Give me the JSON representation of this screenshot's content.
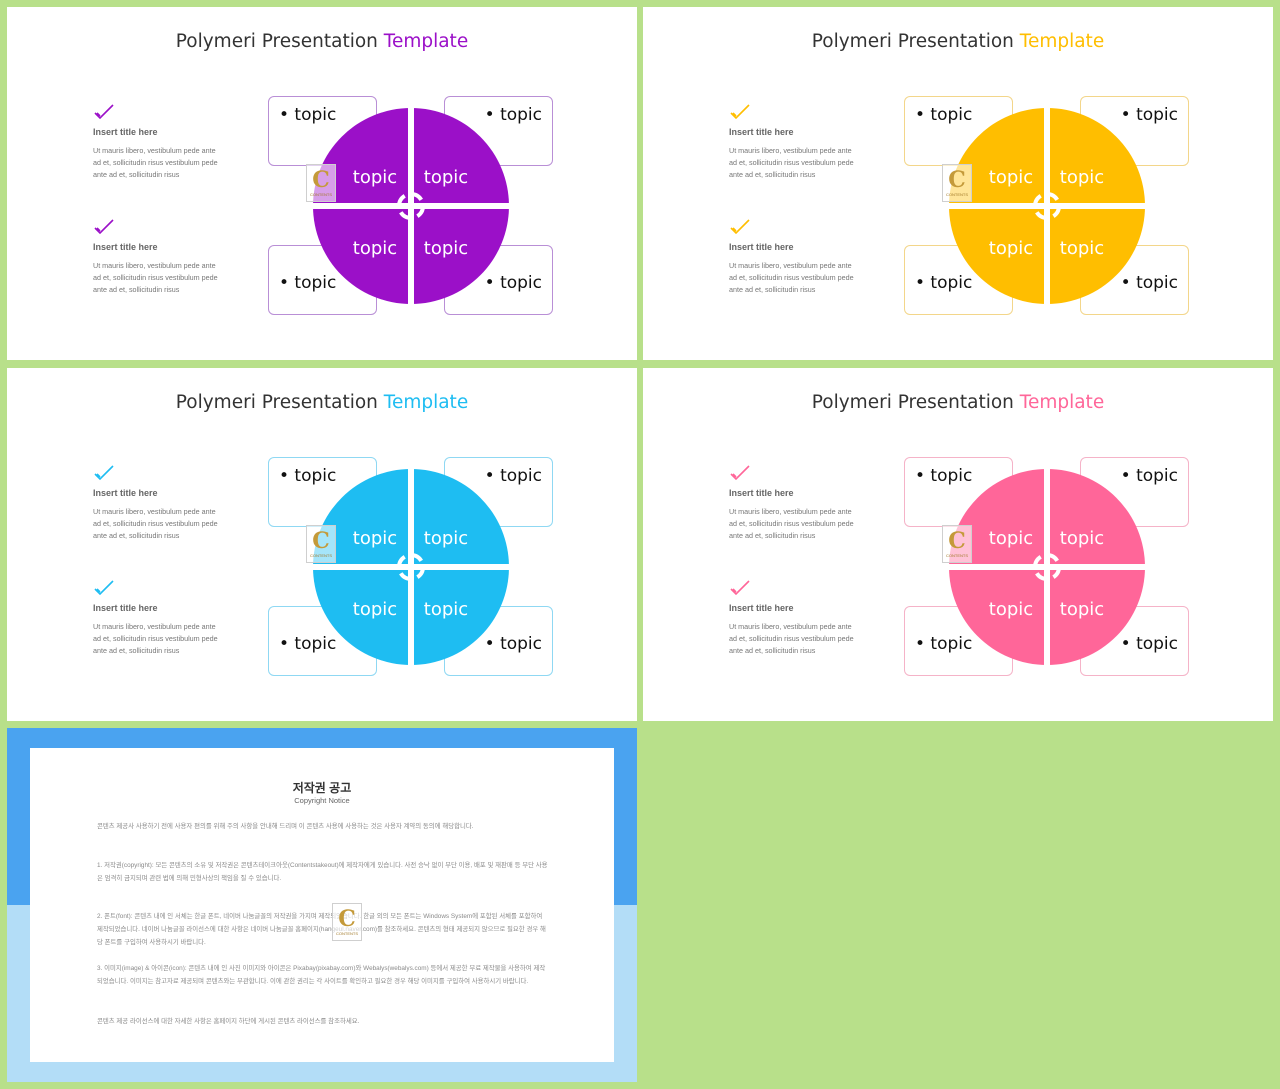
{
  "slides": [
    {
      "title_main": "Polymeri Presentation ",
      "title_accent": "Template",
      "accent": "#9b10c8",
      "border": "#b98fd6",
      "items": [
        {
          "icon": "check-icon",
          "title": "Insert title here",
          "body": "Ut mauris libero, vestibulum pede ante ad et, sollicitudin risus vestibulum pede ante ad et, sollicitudin risus"
        },
        {
          "icon": "check-icon",
          "title": "Insert title here",
          "body": "Ut mauris libero, vestibulum pede ante ad et, sollicitudin risus vestibulum pede ante ad et, sollicitudin risus"
        }
      ],
      "boxes": [
        "• topic",
        "• topic",
        "• topic",
        "• topic"
      ],
      "quadrants": [
        "topic",
        "topic",
        "topic",
        "topic"
      ]
    },
    {
      "title_main": "Polymeri Presentation ",
      "title_accent": "Template",
      "accent": "#ffbe00",
      "border": "#f3d68a",
      "items": [
        {
          "icon": "check-icon",
          "title": "Insert title here",
          "body": "Ut mauris libero, vestibulum pede ante ad et, sollicitudin risus vestibulum pede ante ad et, sollicitudin risus"
        },
        {
          "icon": "check-icon",
          "title": "Insert title here",
          "body": "Ut mauris libero, vestibulum pede ante ad et, sollicitudin risus vestibulum pede ante ad et, sollicitudin risus"
        }
      ],
      "boxes": [
        "• topic",
        "• topic",
        "• topic",
        "• topic"
      ],
      "quadrants": [
        "topic",
        "topic",
        "topic",
        "topic"
      ]
    },
    {
      "title_main": "Polymeri Presentation ",
      "title_accent": "Template",
      "accent": "#1ebdf2",
      "border": "#8fd8f3",
      "items": [
        {
          "icon": "check-icon",
          "title": "Insert title here",
          "body": "Ut mauris libero, vestibulum pede ante ad et, sollicitudin risus vestibulum pede ante ad et, sollicitudin risus"
        },
        {
          "icon": "check-icon",
          "title": "Insert title here",
          "body": "Ut mauris libero, vestibulum pede ante ad et, sollicitudin risus vestibulum pede ante ad et, sollicitudin risus"
        }
      ],
      "boxes": [
        "• topic",
        "• topic",
        "• topic",
        "• topic"
      ],
      "quadrants": [
        "topic",
        "topic",
        "topic",
        "topic"
      ]
    },
    {
      "title_main": "Polymeri Presentation ",
      "title_accent": "Template",
      "accent": "#ff6699",
      "border": "#f5b3c8",
      "items": [
        {
          "icon": "check-icon",
          "title": "Insert title here",
          "body": "Ut mauris libero, vestibulum pede ante ad et, sollicitudin risus vestibulum pede ante ad et, sollicitudin risus"
        },
        {
          "icon": "check-icon",
          "title": "Insert title here",
          "body": "Ut mauris libero, vestibulum pede ante ad et, sollicitudin risus vestibulum pede ante ad et, sollicitudin risus"
        }
      ],
      "boxes": [
        "• topic",
        "• topic",
        "• topic",
        "• topic"
      ],
      "quadrants": [
        "topic",
        "topic",
        "topic",
        "topic"
      ]
    }
  ],
  "watermark": {
    "letter": "C",
    "text": "CONTENTS"
  },
  "copyright": {
    "title": "저작권 공고",
    "subtitle": "Copyright Notice",
    "paragraphs": [
      "콘텐츠 제공사 사용하기 전에 사용자 편의를 위해 주의 사항을 안내해 드리며 이 콘텐츠 사용에 사용하는 것은 사용자 계약의 동의에 해당합니다.",
      "1. 저작권(copyright): 모든 콘텐츠의 소유 및 저작권은 콘텐츠테이크아웃(Contentstakeout)에 제작자에게 있습니다. 사전 승낙 없이 무단 이용, 배포 및 재판매 등 무단 사용은 엄격히 금지되며 관련 법에 의해 민형사상의 책임을 질 수 있습니다.",
      "2. 폰트(font): 콘텐츠 내에 인 서체는 한글 폰트, 네이버 나눔글꼴의 저작권을 가지며 제작되었습니다. 한글 외의 모든 폰트는 Windows System에 포함된 서체를 포함하여 제작되었습니다. 네이버 나눔글꼴 라이선스에 대한 사항은 네이버 나눔글꼴 홈페이지(hangeul.naver.com)를 참조하세요. 콘텐츠의 형태 제공되지 않으므로 필요한 경우 해당 폰트를 구입하여 사용하시기 바랍니다.",
      "3. 이미지(image) & 아이콘(icon): 콘텐츠 내에 인 사진 이미지와 아이콘은 Pixabay(pixabay.com)와 Webalys(webalys.com) 등에서 제공한 무료 제작물을 사용하여 제작되었습니다. 이미지는 참고자료 제공되며 콘텐츠와는 무관합니다. 이에 관한 권리는 각 사이트를 확인하고 필요한 경우 해당 이미지를 구입하여 사용하시기 바랍니다.",
      "콘텐츠 제공 라이선스에 대한 자세한 사항은 홈페이지 하단에 게시된 콘텐츠 라이선스를 참조하세요."
    ]
  }
}
